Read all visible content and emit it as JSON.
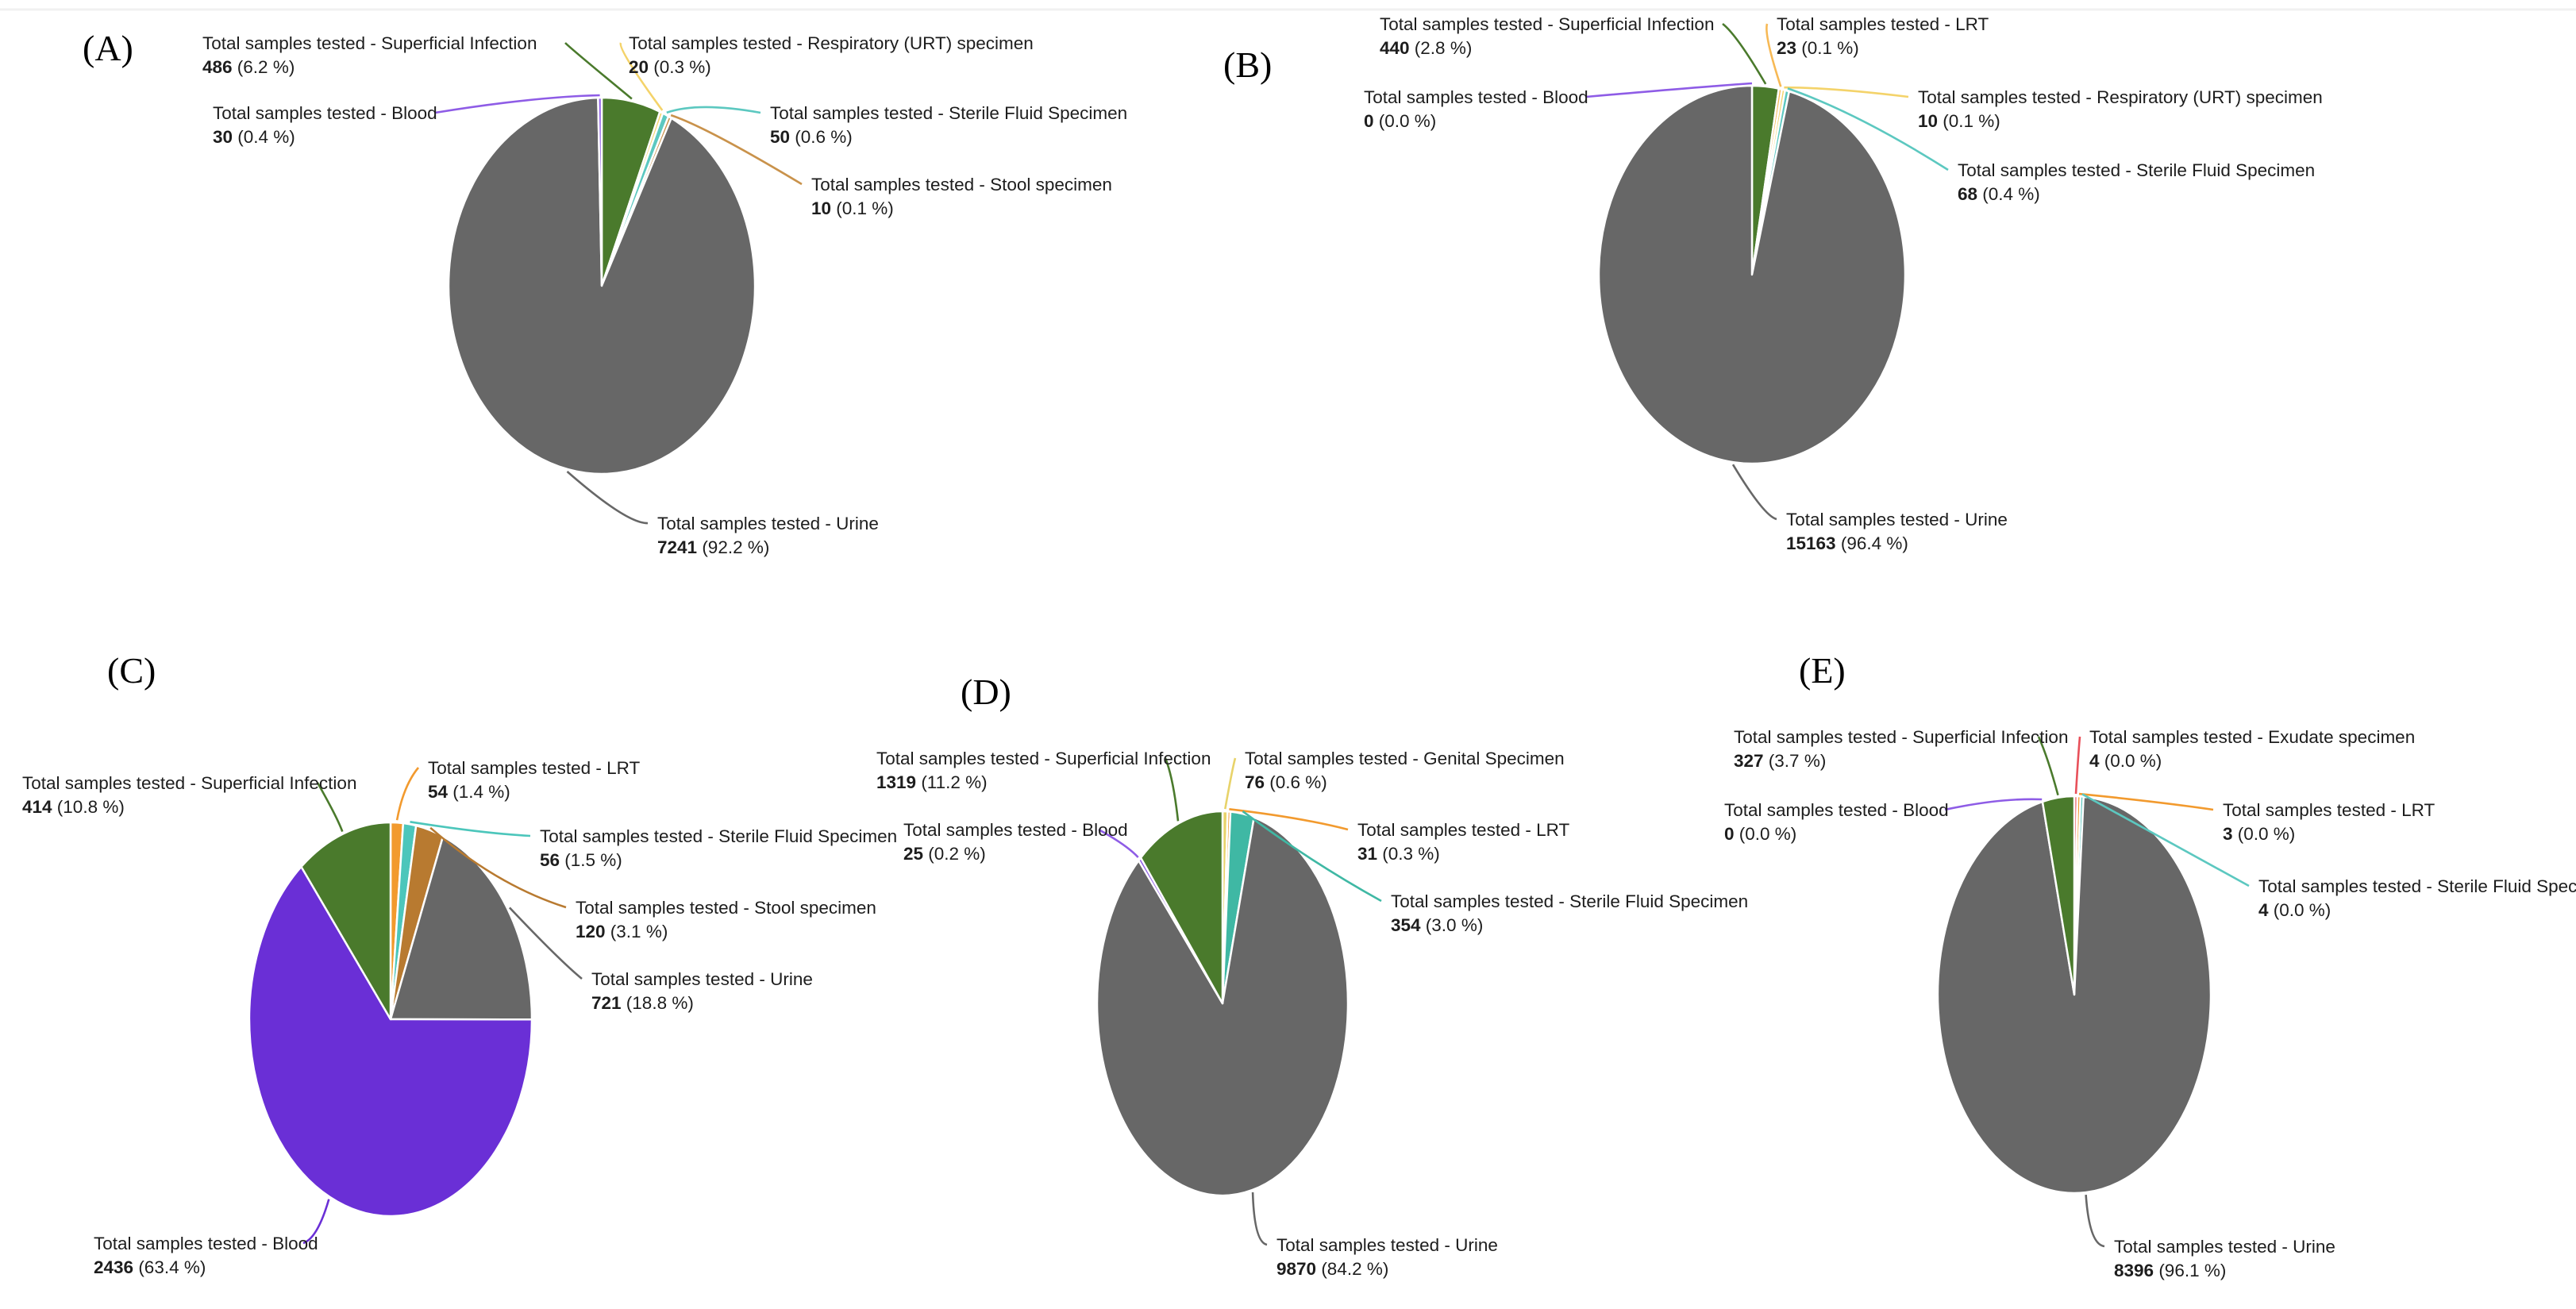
{
  "chart_data": [
    {
      "type": "pie",
      "panel": "(A)",
      "slices": [
        {
          "label": "Total samples tested - Superficial Infection",
          "value": 486,
          "percent": "6.2 %",
          "color": "#4a7a2c"
        },
        {
          "label": "Total samples tested - Respiratory (URT) specimen",
          "value": 20,
          "percent": "0.3 %",
          "color": "#f4d36a"
        },
        {
          "label": "Total samples tested - Sterile Fluid Specimen",
          "value": 50,
          "percent": "0.6 %",
          "color": "#5cc8c0"
        },
        {
          "label": "Total samples tested - Stool specimen",
          "value": 10,
          "percent": "0.1 %",
          "color": "#c9924b"
        },
        {
          "label": "Total samples tested - Urine",
          "value": 7241,
          "percent": "92.2 %",
          "color": "#676767"
        },
        {
          "label": "Total samples tested - Blood",
          "value": 30,
          "percent": "0.4 %",
          "color": "#8e5ce6"
        }
      ]
    },
    {
      "type": "pie",
      "panel": "(B)",
      "slices": [
        {
          "label": "Total samples tested - Superficial Infection",
          "value": 440,
          "percent": "2.8 %",
          "color": "#4a7a2c"
        },
        {
          "label": "Total samples tested - LRT",
          "value": 23,
          "percent": "0.1 %",
          "color": "#f7b955"
        },
        {
          "label": "Total samples tested - Respiratory (URT) specimen",
          "value": 10,
          "percent": "0.1 %",
          "color": "#f4d36a"
        },
        {
          "label": "Total samples tested - Sterile Fluid Specimen",
          "value": 68,
          "percent": "0.4 %",
          "color": "#5cc8c0"
        },
        {
          "label": "Total samples tested - Urine",
          "value": 15163,
          "percent": "96.4 %",
          "color": "#676767"
        },
        {
          "label": "Total samples tested - Blood",
          "value": 0,
          "percent": "0.0 %",
          "color": "#8e5ce6"
        }
      ]
    },
    {
      "type": "pie",
      "panel": "(C)",
      "slices": [
        {
          "label": "Total samples tested - LRT",
          "value": 54,
          "percent": "1.4 %",
          "color": "#f29a2e"
        },
        {
          "label": "Total samples tested - Sterile Fluid Specimen",
          "value": 56,
          "percent": "1.5 %",
          "color": "#4cc6bb"
        },
        {
          "label": "Total samples tested - Stool specimen",
          "value": 120,
          "percent": "3.1 %",
          "color": "#b87a30"
        },
        {
          "label": "Total samples tested - Urine",
          "value": 721,
          "percent": "18.8 %",
          "color": "#676767"
        },
        {
          "label": "Total samples tested - Blood",
          "value": 2436,
          "percent": "63.4 %",
          "color": "#6a2fd6"
        },
        {
          "label": "Total samples tested - Superficial Infection",
          "value": 414,
          "percent": "10.8 %",
          "color": "#4a7a2c"
        }
      ]
    },
    {
      "type": "pie",
      "panel": "(D)",
      "slices": [
        {
          "label": "Total samples tested - Genital Specimen",
          "value": 76,
          "percent": "0.6 %",
          "color": "#e8d36a"
        },
        {
          "label": "Total samples tested - LRT",
          "value": 31,
          "percent": "0.3 %",
          "color": "#f29a2e"
        },
        {
          "label": "Total samples tested - Sterile Fluid Specimen",
          "value": 354,
          "percent": "3.0 %",
          "color": "#3fb8a4"
        },
        {
          "label": "Total samples tested - Urine",
          "value": 9870,
          "percent": "84.2 %",
          "color": "#676767"
        },
        {
          "label": "Total samples tested - Blood",
          "value": 25,
          "percent": "0.2 %",
          "color": "#8e5ce6"
        },
        {
          "label": "Total samples tested - Superficial Infection",
          "value": 1319,
          "percent": "11.2 %",
          "color": "#4a7a2c"
        }
      ]
    },
    {
      "type": "pie",
      "panel": "(E)",
      "slices": [
        {
          "label": "Total samples tested - Exudate specimen",
          "value": 4,
          "percent": "0.0 %",
          "color": "#e8505a"
        },
        {
          "label": "Total samples tested - LRT",
          "value": 3,
          "percent": "0.0 %",
          "color": "#f29a2e"
        },
        {
          "label": "Total samples tested - Sterile Fluid Specimen",
          "value": 4,
          "percent": "0.0 %",
          "color": "#5cc8c0"
        },
        {
          "label": "Total samples tested - Urine",
          "value": 8396,
          "percent": "96.1 %",
          "color": "#676767"
        },
        {
          "label": "Total samples tested - Blood",
          "value": 0,
          "percent": "0.0 %",
          "color": "#8e5ce6"
        },
        {
          "label": "Total samples tested - Superficial Infection",
          "value": 327,
          "percent": "3.7 %",
          "color": "#4a7a2c"
        }
      ]
    }
  ]
}
